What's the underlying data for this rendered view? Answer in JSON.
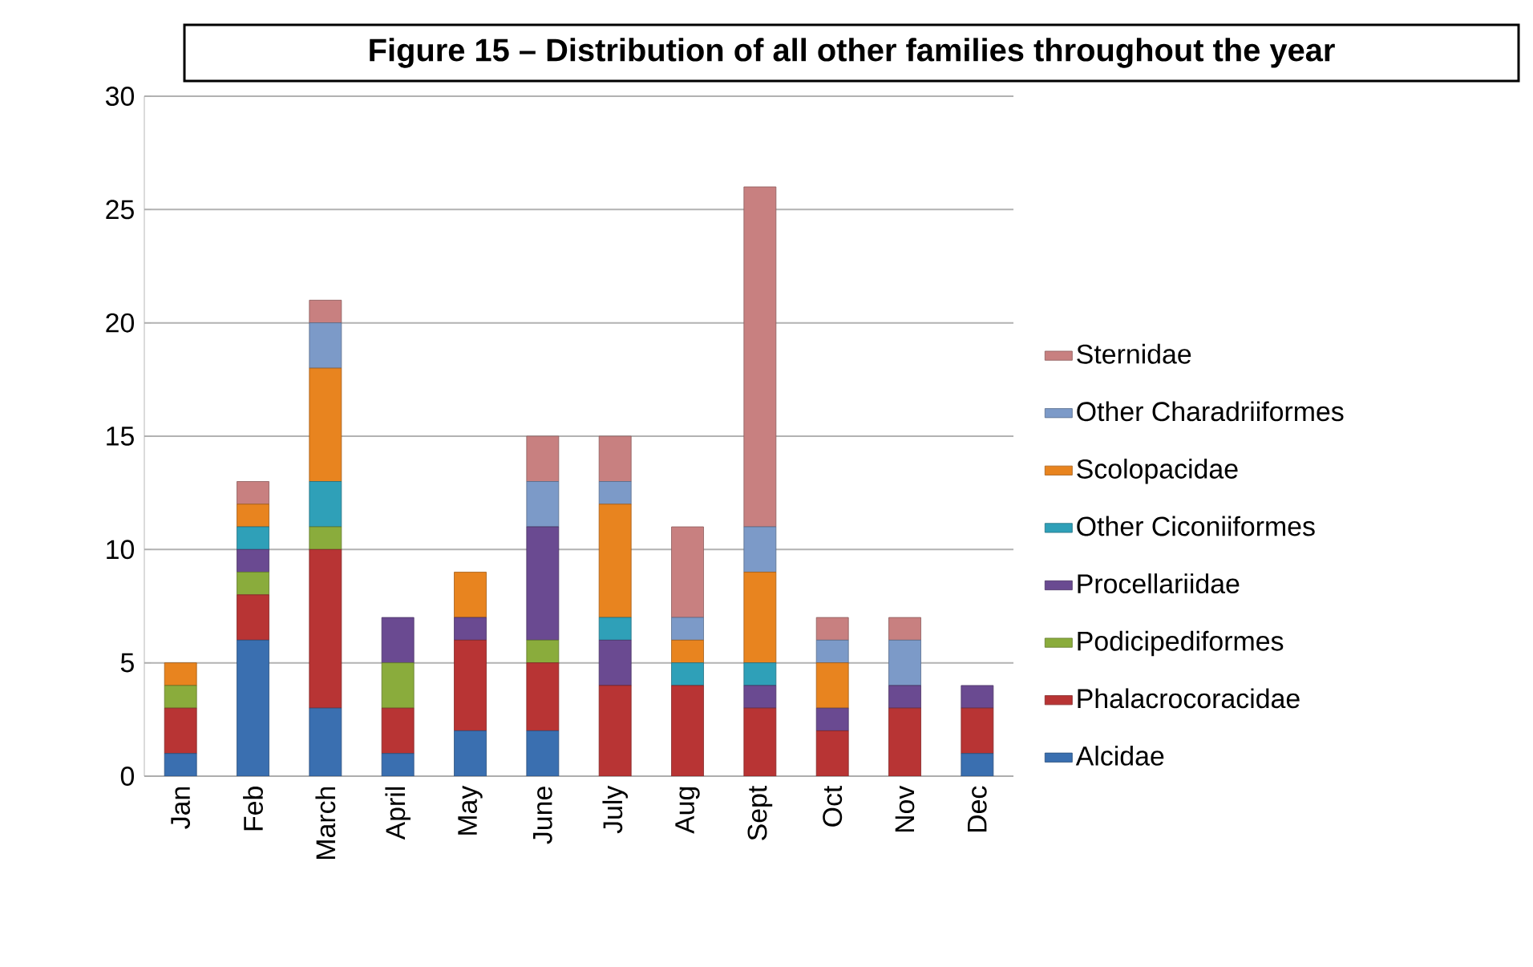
{
  "chart_data": {
    "type": "bar",
    "stacked": true,
    "title": "Figure 15 – Distribution of all other families throughout the year",
    "categories": [
      "Jan",
      "Feb",
      "March",
      "April",
      "May",
      "June",
      "July",
      "Aug",
      "Sept",
      "Oct",
      "Nov",
      "Dec"
    ],
    "series": [
      {
        "name": "Alcidae",
        "color": "#3a6fb0",
        "values": [
          1,
          6,
          3,
          1,
          2,
          2,
          0,
          0,
          0,
          0,
          0,
          1
        ]
      },
      {
        "name": "Phalacrocoracidae",
        "color": "#b83434",
        "values": [
          2,
          2,
          7,
          2,
          4,
          3,
          4,
          4,
          3,
          2,
          3,
          2
        ]
      },
      {
        "name": "Podicipediformes",
        "color": "#8aac3c",
        "values": [
          1,
          1,
          1,
          2,
          0,
          1,
          0,
          0,
          0,
          0,
          0,
          0
        ]
      },
      {
        "name": "Procellariidae",
        "color": "#6a4a91",
        "values": [
          0,
          1,
          0,
          2,
          1,
          5,
          2,
          0,
          1,
          1,
          1,
          1
        ]
      },
      {
        "name": "Other Ciconiiformes",
        "color": "#2fa0b8",
        "values": [
          0,
          1,
          2,
          0,
          0,
          0,
          1,
          1,
          1,
          0,
          0,
          0
        ]
      },
      {
        "name": "Scolopacidae",
        "color": "#e8841f",
        "values": [
          1,
          1,
          5,
          0,
          2,
          0,
          5,
          1,
          4,
          2,
          0,
          0
        ]
      },
      {
        "name": "Other Charadriiformes",
        "color": "#7c9ac8",
        "values": [
          0,
          0,
          2,
          0,
          0,
          2,
          1,
          1,
          2,
          1,
          2,
          0
        ]
      },
      {
        "name": "Sternidae",
        "color": "#c88080",
        "values": [
          0,
          1,
          1,
          0,
          0,
          2,
          2,
          4,
          15,
          1,
          1,
          0
        ]
      }
    ],
    "ylim": [
      0,
      30
    ],
    "yticks": [
      0,
      5,
      10,
      15,
      20,
      25,
      30
    ],
    "grid": "y",
    "legend": "right"
  }
}
